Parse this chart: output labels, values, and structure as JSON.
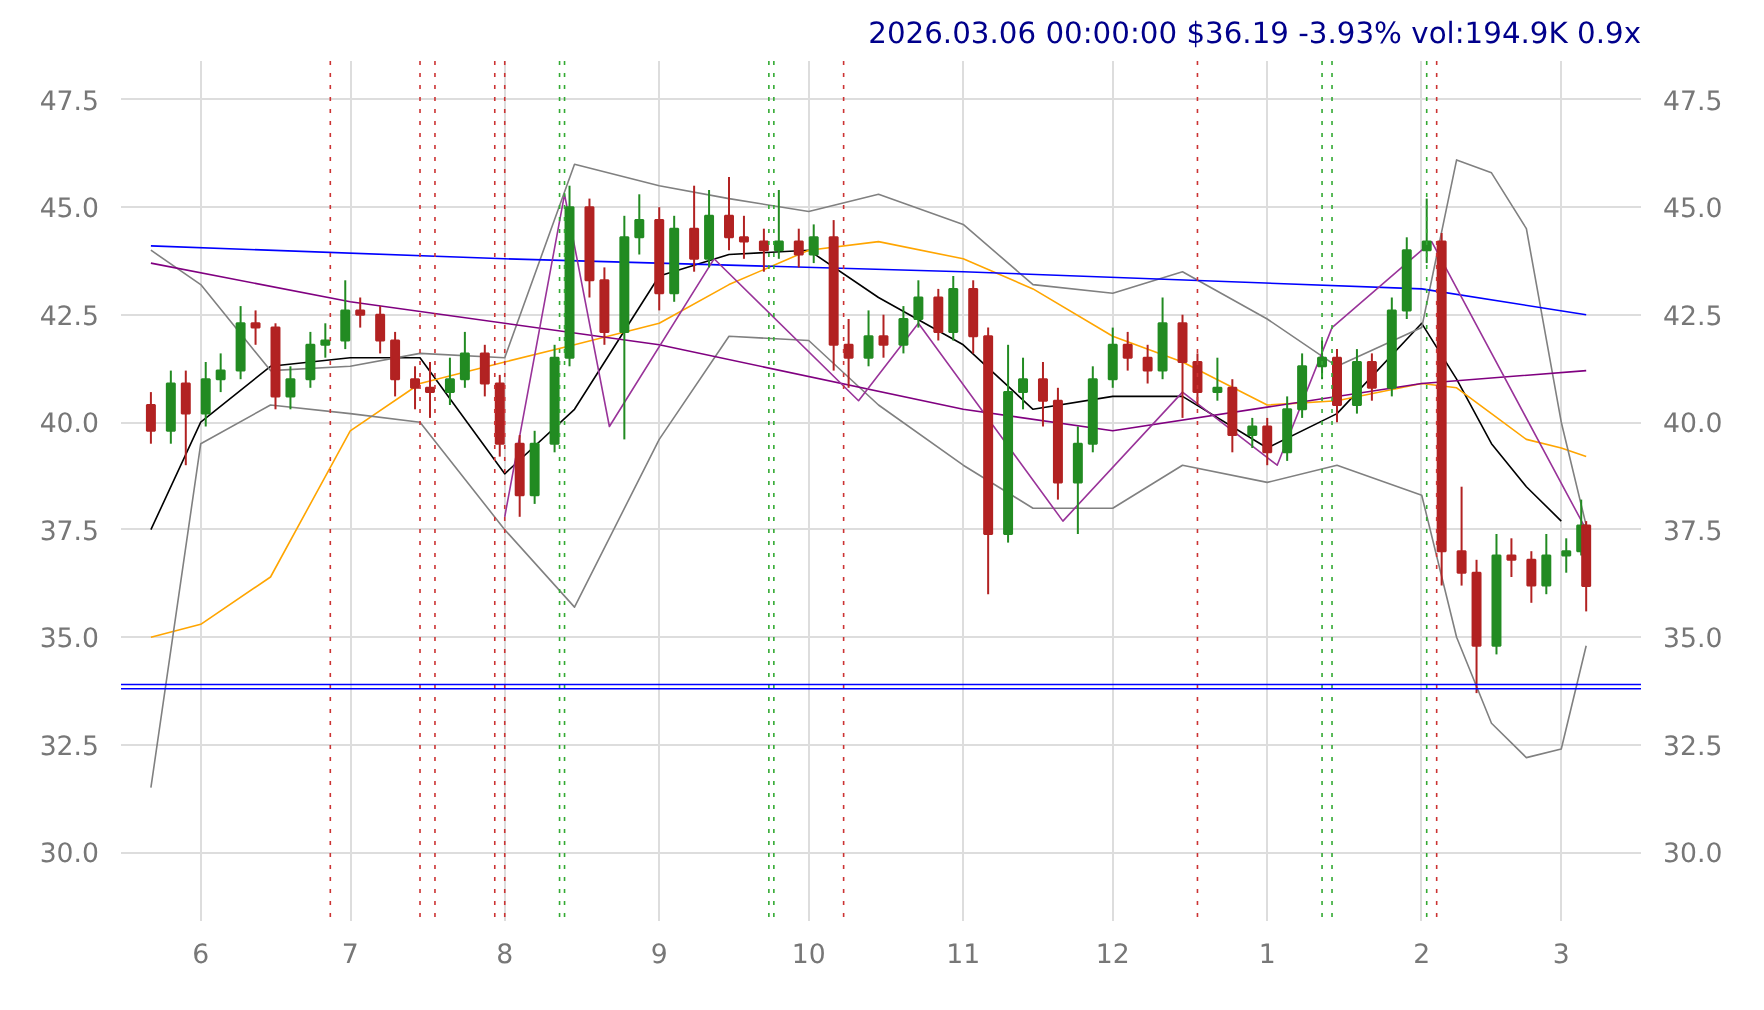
{
  "chart_data": {
    "type": "candlestick",
    "title": "2026.03.06 00:00:00 $36.19 -3.93% vol:194.9K 0.9x",
    "x": [
      "2025-05-22",
      "2025-05-26",
      "2025-05-29",
      "2025-06-02",
      "2025-06-05",
      "2025-06-09",
      "2025-06-12",
      "2025-06-16",
      "2025-06-19",
      "2025-06-23",
      "2025-06-26",
      "2025-06-30",
      "2025-07-03",
      "2025-07-07",
      "2025-07-10",
      "2025-07-14",
      "2025-07-17",
      "2025-07-21",
      "2025-07-24",
      "2025-07-28",
      "2025-07-31",
      "2025-08-04",
      "2025-08-07",
      "2025-08-11",
      "2025-08-14",
      "2025-08-18",
      "2025-08-21",
      "2025-08-25",
      "2025-08-28",
      "2025-09-01",
      "2025-09-04",
      "2025-09-08",
      "2025-09-11",
      "2025-09-15",
      "2025-09-18",
      "2025-09-22",
      "2025-09-25",
      "2025-09-29",
      "2025-10-02",
      "2025-10-06",
      "2025-10-09",
      "2025-10-13",
      "2025-10-16",
      "2025-10-20",
      "2025-10-23",
      "2025-10-27",
      "2025-10-30",
      "2025-11-03",
      "2025-11-06",
      "2025-11-10",
      "2025-11-13",
      "2025-11-17",
      "2025-11-20",
      "2025-11-24",
      "2025-11-27",
      "2025-12-01",
      "2025-12-04",
      "2025-12-08",
      "2025-12-11",
      "2025-12-15",
      "2025-12-18",
      "2025-12-22",
      "2025-12-25",
      "2025-12-29",
      "2026-01-01",
      "2026-01-05",
      "2026-01-08",
      "2026-01-12",
      "2026-01-15",
      "2026-01-19",
      "2026-01-22",
      "2026-01-26",
      "2026-01-29",
      "2026-02-02",
      "2026-02-05",
      "2026-02-09",
      "2026-02-12",
      "2026-02-16",
      "2026-02-19",
      "2026-02-23",
      "2026-02-26",
      "2026-03-02",
      "2026-03-05",
      "2026-03-06"
    ],
    "ohlc": [
      [
        40.4,
        40.7,
        39.5,
        39.8
      ],
      [
        39.8,
        41.2,
        39.5,
        40.9
      ],
      [
        40.9,
        41.2,
        39.0,
        40.2
      ],
      [
        40.2,
        41.4,
        39.9,
        41.0
      ],
      [
        41.0,
        41.6,
        40.7,
        41.2
      ],
      [
        41.2,
        42.7,
        41.0,
        42.3
      ],
      [
        42.3,
        42.6,
        41.8,
        42.2
      ],
      [
        42.2,
        42.3,
        40.3,
        40.6
      ],
      [
        40.6,
        41.3,
        40.3,
        41.0
      ],
      [
        41.0,
        42.1,
        40.8,
        41.8
      ],
      [
        41.8,
        42.3,
        41.5,
        41.9
      ],
      [
        41.9,
        43.3,
        41.7,
        42.6
      ],
      [
        42.6,
        42.9,
        42.2,
        42.5
      ],
      [
        42.5,
        42.7,
        41.6,
        41.9
      ],
      [
        41.9,
        42.1,
        40.6,
        41.0
      ],
      [
        41.0,
        41.3,
        40.3,
        40.8
      ],
      [
        40.8,
        41.4,
        40.1,
        40.7
      ],
      [
        40.7,
        41.5,
        40.4,
        41.0
      ],
      [
        41.0,
        42.1,
        40.8,
        41.6
      ],
      [
        41.6,
        41.8,
        40.6,
        40.9
      ],
      [
        40.9,
        41.1,
        39.2,
        39.5
      ],
      [
        39.5,
        39.7,
        37.8,
        38.3
      ],
      [
        38.3,
        39.8,
        38.1,
        39.5
      ],
      [
        39.5,
        41.8,
        39.3,
        41.5
      ],
      [
        41.5,
        45.5,
        41.3,
        45.0
      ],
      [
        45.0,
        45.2,
        42.9,
        43.3
      ],
      [
        43.3,
        43.6,
        41.8,
        42.1
      ],
      [
        42.1,
        44.8,
        39.6,
        44.3
      ],
      [
        44.3,
        45.3,
        43.9,
        44.7
      ],
      [
        44.7,
        45.0,
        42.6,
        43.0
      ],
      [
        43.0,
        44.8,
        42.8,
        44.5
      ],
      [
        44.5,
        45.5,
        43.5,
        43.8
      ],
      [
        43.8,
        45.4,
        43.6,
        44.8
      ],
      [
        44.8,
        45.7,
        44.0,
        44.3
      ],
      [
        44.3,
        44.8,
        43.8,
        44.2
      ],
      [
        44.2,
        44.5,
        43.5,
        44.0
      ],
      [
        44.0,
        45.4,
        43.8,
        44.2
      ],
      [
        44.2,
        44.5,
        43.6,
        43.9
      ],
      [
        43.9,
        44.6,
        43.7,
        44.3
      ],
      [
        44.3,
        44.7,
        41.2,
        41.8
      ],
      [
        41.8,
        42.4,
        40.8,
        41.5
      ],
      [
        41.5,
        42.6,
        41.3,
        42.0
      ],
      [
        42.0,
        42.5,
        41.5,
        41.8
      ],
      [
        41.8,
        42.7,
        41.6,
        42.4
      ],
      [
        42.4,
        43.3,
        42.2,
        42.9
      ],
      [
        42.9,
        43.1,
        41.9,
        42.1
      ],
      [
        42.1,
        43.4,
        41.9,
        43.1
      ],
      [
        43.1,
        43.3,
        41.6,
        42.0
      ],
      [
        42.0,
        42.2,
        36.0,
        37.4
      ],
      [
        37.4,
        41.8,
        37.2,
        40.7
      ],
      [
        40.7,
        41.5,
        40.3,
        41.0
      ],
      [
        41.0,
        41.4,
        39.9,
        40.5
      ],
      [
        40.5,
        40.8,
        38.2,
        38.6
      ],
      [
        38.6,
        39.9,
        37.4,
        39.5
      ],
      [
        39.5,
        41.3,
        39.3,
        41.0
      ],
      [
        41.0,
        42.2,
        40.8,
        41.8
      ],
      [
        41.8,
        42.1,
        41.2,
        41.5
      ],
      [
        41.5,
        41.8,
        40.9,
        41.2
      ],
      [
        41.2,
        42.9,
        41.0,
        42.3
      ],
      [
        42.3,
        42.5,
        40.1,
        41.4
      ],
      [
        41.4,
        41.6,
        40.4,
        40.7
      ],
      [
        40.7,
        41.5,
        40.5,
        40.8
      ],
      [
        40.8,
        41.0,
        39.3,
        39.7
      ],
      [
        39.7,
        40.1,
        39.4,
        39.9
      ],
      [
        39.9,
        40.1,
        39.0,
        39.3
      ],
      [
        39.3,
        40.6,
        39.1,
        40.3
      ],
      [
        40.3,
        41.6,
        40.1,
        41.3
      ],
      [
        41.3,
        41.9,
        41.0,
        41.5
      ],
      [
        41.5,
        41.7,
        40.0,
        40.4
      ],
      [
        40.4,
        41.7,
        40.2,
        41.4
      ],
      [
        41.4,
        41.6,
        40.5,
        40.8
      ],
      [
        40.8,
        42.9,
        40.6,
        42.6
      ],
      [
        42.6,
        44.3,
        42.4,
        44.0
      ],
      [
        44.0,
        45.2,
        43.7,
        44.2
      ],
      [
        44.2,
        44.4,
        36.2,
        37.0
      ],
      [
        37.0,
        38.5,
        36.2,
        36.5
      ],
      [
        36.5,
        36.8,
        33.7,
        34.8
      ],
      [
        34.8,
        37.4,
        34.6,
        36.9
      ],
      [
        36.9,
        37.3,
        36.4,
        36.8
      ],
      [
        36.8,
        37.0,
        35.8,
        36.2
      ],
      [
        36.2,
        37.4,
        36.0,
        36.9
      ],
      [
        36.9,
        37.3,
        36.5,
        37.0
      ],
      [
        37.0,
        38.2,
        36.9,
        37.6
      ],
      [
        37.6,
        37.7,
        35.6,
        36.19
      ]
    ],
    "series": [
      {
        "type": "line",
        "color": "#000000",
        "x": [
          "2025-05-22",
          "2025-06-01",
          "2025-06-15",
          "2025-07-01",
          "2025-07-15",
          "2025-08-01",
          "2025-08-15",
          "2025-09-01",
          "2025-09-15",
          "2025-10-01",
          "2025-10-15",
          "2025-11-01",
          "2025-11-15",
          "2025-12-01",
          "2025-12-15",
          "2026-01-01",
          "2026-01-15",
          "2026-02-01",
          "2026-02-08",
          "2026-02-15",
          "2026-02-22",
          "2026-03-01"
        ],
        "values": [
          37.5,
          40.0,
          41.3,
          41.5,
          41.5,
          38.8,
          40.3,
          43.4,
          43.9,
          44.0,
          42.9,
          41.8,
          40.3,
          40.6,
          40.6,
          39.4,
          40.2,
          42.3,
          41.0,
          39.5,
          38.5,
          37.7
        ]
      },
      {
        "type": "line",
        "color": "#ffa500",
        "x": [
          "2025-05-22",
          "2025-06-01",
          "2025-06-15",
          "2025-07-01",
          "2025-07-15",
          "2025-08-01",
          "2025-08-15",
          "2025-09-01",
          "2025-09-15",
          "2025-10-01",
          "2025-10-15",
          "2025-11-01",
          "2025-11-15",
          "2025-12-01",
          "2025-12-15",
          "2026-01-01",
          "2026-01-15",
          "2026-02-01",
          "2026-02-08",
          "2026-02-15",
          "2026-02-22",
          "2026-03-01",
          "2026-03-06"
        ],
        "values": [
          35.0,
          35.3,
          36.4,
          39.8,
          40.9,
          41.4,
          41.8,
          42.3,
          43.2,
          44.0,
          44.2,
          43.8,
          43.1,
          42.0,
          41.4,
          40.4,
          40.5,
          40.9,
          40.8,
          40.2,
          39.6,
          39.4,
          39.2
        ]
      },
      {
        "type": "line",
        "color": "#808080",
        "x": [
          "2025-05-22",
          "2025-06-01",
          "2025-06-15",
          "2025-07-01",
          "2025-07-15",
          "2025-08-01",
          "2025-08-15",
          "2025-09-01",
          "2025-09-15",
          "2025-10-01",
          "2025-10-15",
          "2025-11-01",
          "2025-11-15",
          "2025-12-01",
          "2025-12-15",
          "2026-01-01",
          "2026-01-15",
          "2026-02-01",
          "2026-02-08",
          "2026-02-15",
          "2026-02-22",
          "2026-03-01",
          "2026-03-06"
        ],
        "values": [
          44.0,
          43.2,
          41.2,
          41.3,
          41.6,
          41.5,
          46.0,
          45.5,
          45.2,
          44.9,
          45.3,
          44.6,
          43.2,
          43.0,
          43.5,
          42.4,
          41.3,
          42.2,
          46.1,
          45.8,
          44.5,
          40.0,
          37.6
        ]
      },
      {
        "type": "line",
        "color": "#808080",
        "x": [
          "2025-05-22",
          "2025-06-01",
          "2025-06-15",
          "2025-07-01",
          "2025-07-15",
          "2025-08-01",
          "2025-08-15",
          "2025-09-01",
          "2025-09-15",
          "2025-10-01",
          "2025-10-15",
          "2025-11-01",
          "2025-11-15",
          "2025-12-01",
          "2025-12-15",
          "2026-01-01",
          "2026-01-15",
          "2026-02-01",
          "2026-02-08",
          "2026-02-15",
          "2026-02-22",
          "2026-03-01",
          "2026-03-06"
        ],
        "values": [
          31.5,
          39.5,
          40.4,
          40.2,
          40.0,
          37.5,
          35.7,
          39.6,
          42.0,
          41.9,
          40.4,
          39.0,
          38.0,
          38.0,
          39.0,
          38.6,
          39.0,
          38.3,
          35.0,
          33.0,
          32.2,
          32.4,
          34.8
        ]
      },
      {
        "type": "line",
        "color": "#0000ff",
        "x": [
          "2025-05-22",
          "2025-08-01",
          "2025-11-01",
          "2026-02-01",
          "2026-03-06"
        ],
        "values": [
          44.1,
          43.8,
          43.5,
          43.1,
          42.5
        ]
      },
      {
        "type": "line",
        "color": "#800080",
        "x": [
          "2025-05-22",
          "2025-07-01",
          "2025-09-01",
          "2025-11-01",
          "2025-12-01",
          "2026-02-01",
          "2026-03-06"
        ],
        "values": [
          43.7,
          42.8,
          41.8,
          40.3,
          39.8,
          40.9,
          41.2
        ]
      },
      {
        "type": "line",
        "color": "#993399",
        "x": [
          "2025-08-01",
          "2025-08-13",
          "2025-08-22",
          "2025-09-12",
          "2025-10-11",
          "2025-10-23",
          "2025-11-21",
          "2025-12-15",
          "2026-01-03",
          "2026-01-14",
          "2026-02-03",
          "2026-03-06"
        ],
        "values": [
          37.8,
          45.3,
          39.9,
          43.8,
          40.5,
          42.3,
          37.7,
          40.7,
          39.0,
          42.2,
          44.2,
          37.5
        ]
      }
    ],
    "ref_lines": [
      {
        "axis": "x",
        "value": "2025-06-27",
        "color": "#cc3333",
        "line_style": "dotted"
      },
      {
        "axis": "x",
        "value": "2025-07-15",
        "color": "#cc3333",
        "line_style": "dotted"
      },
      {
        "axis": "x",
        "value": "2025-07-18",
        "color": "#cc3333",
        "line_style": "dotted"
      },
      {
        "axis": "x",
        "value": "2025-07-30",
        "color": "#cc3333",
        "line_style": "dotted"
      },
      {
        "axis": "x",
        "value": "2025-08-01",
        "color": "#cc3333",
        "line_style": "dotted"
      },
      {
        "axis": "x",
        "value": "2025-10-08",
        "color": "#cc3333",
        "line_style": "dotted"
      },
      {
        "axis": "x",
        "value": "2025-12-18",
        "color": "#cc3333",
        "line_style": "dotted"
      },
      {
        "axis": "x",
        "value": "2026-02-04",
        "color": "#cc3333",
        "line_style": "dotted"
      },
      {
        "axis": "x",
        "value": "2025-08-12",
        "color": "#33aa33",
        "line_style": "dotted"
      },
      {
        "axis": "x",
        "value": "2025-08-13",
        "color": "#33aa33",
        "line_style": "dotted"
      },
      {
        "axis": "x",
        "value": "2025-09-23",
        "color": "#33aa33",
        "line_style": "dotted"
      },
      {
        "axis": "x",
        "value": "2025-09-24",
        "color": "#33aa33",
        "line_style": "dotted"
      },
      {
        "axis": "x",
        "value": "2026-01-12",
        "color": "#33aa33",
        "line_style": "dotted"
      },
      {
        "axis": "x",
        "value": "2026-01-14",
        "color": "#33aa33",
        "line_style": "dotted"
      },
      {
        "axis": "x",
        "value": "2026-02-02",
        "color": "#33aa33",
        "line_style": "dotted"
      },
      {
        "axis": "y",
        "value": 33.9,
        "color": "#0000ff",
        "line_style": "solid"
      },
      {
        "axis": "y",
        "value": 33.8,
        "color": "#0000ff",
        "line_style": "solid"
      }
    ],
    "xlim": [
      "2025-05-16",
      "2026-03-17"
    ],
    "xticks": [
      {
        "value": "2025-06-01",
        "label": "6"
      },
      {
        "value": "2025-07-01",
        "label": "7"
      },
      {
        "value": "2025-08-01",
        "label": "8"
      },
      {
        "value": "2025-09-01",
        "label": "9"
      },
      {
        "value": "2025-10-01",
        "label": "10"
      },
      {
        "value": "2025-11-01",
        "label": "11"
      },
      {
        "value": "2025-12-01",
        "label": "12"
      },
      {
        "value": "2026-01-01",
        "label": "1"
      },
      {
        "value": "2026-02-01",
        "label": "2"
      },
      {
        "value": "2026-03-01",
        "label": "3"
      }
    ],
    "ylim": [
      28.4,
      48.4
    ],
    "yticks": [
      {
        "value": 30,
        "label": "30.0"
      },
      {
        "value": 32.5,
        "label": "32.5"
      },
      {
        "value": 35,
        "label": "35.0"
      },
      {
        "value": 37.5,
        "label": "37.5"
      },
      {
        "value": 40,
        "label": "40.0"
      },
      {
        "value": 42.5,
        "label": "42.5"
      },
      {
        "value": 45,
        "label": "45.0"
      },
      {
        "value": 47.5,
        "label": "47.5"
      }
    ],
    "y2lim": [
      28.4,
      48.4
    ],
    "y2ticks": [
      {
        "value": 30,
        "label": "30.0"
      },
      {
        "value": 32.5,
        "label": "32.5"
      },
      {
        "value": 35,
        "label": "35.0"
      },
      {
        "value": 37.5,
        "label": "37.5"
      },
      {
        "value": 40,
        "label": "40.0"
      },
      {
        "value": 42.5,
        "label": "42.5"
      },
      {
        "value": 45,
        "label": "45.0"
      },
      {
        "value": 47.5,
        "label": "47.5"
      }
    ],
    "grid": true
  }
}
